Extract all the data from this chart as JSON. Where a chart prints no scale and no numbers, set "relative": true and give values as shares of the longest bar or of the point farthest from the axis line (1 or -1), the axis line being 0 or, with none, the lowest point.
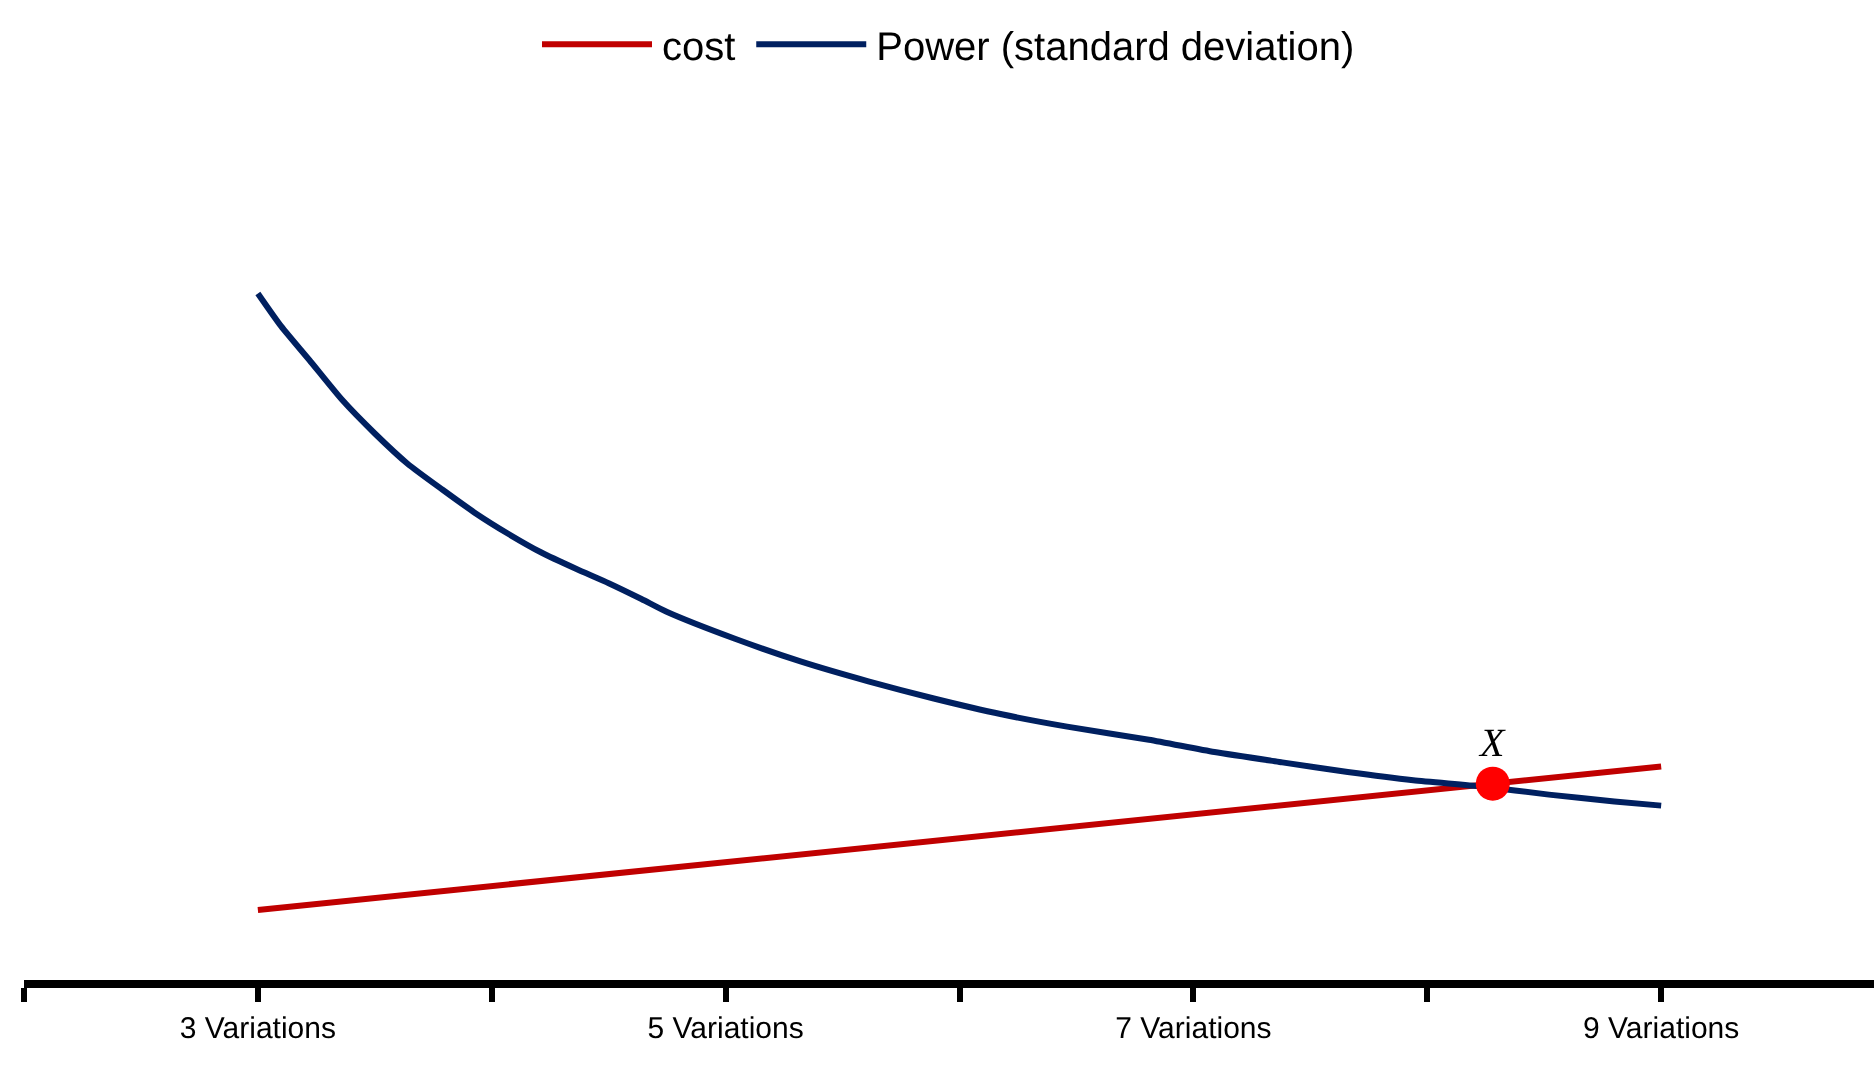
{
  "chart_data": {
    "type": "line",
    "relative": true,
    "legend": "top",
    "xlim": [
      2,
      9.91
    ],
    "xticks": [
      {
        "value": 2,
        "label": null
      },
      {
        "value": 3,
        "label": "3 Variations"
      },
      {
        "value": 4,
        "label": null
      },
      {
        "value": 5,
        "label": "5 Variations"
      },
      {
        "value": 6,
        "label": null
      },
      {
        "value": 7,
        "label": "7 Variations"
      },
      {
        "value": 8,
        "label": null
      },
      {
        "value": 9,
        "label": "9 Variations"
      }
    ],
    "series": [
      {
        "name": "cost",
        "color": "#c00000",
        "x": [
          3,
          9
        ],
        "values": [
          0.102,
          0.311
        ]
      },
      {
        "name": "Power (standard deviation)",
        "color": "#002060",
        "x": [
          3,
          3.1,
          3.22,
          3.36,
          3.5,
          3.64,
          3.79,
          3.93,
          4.07,
          4.21,
          4.36,
          4.5,
          4.64,
          4.75,
          5.04,
          5.32,
          5.61,
          5.89,
          6.18,
          6.46,
          6.81,
          7.09,
          7.38,
          7.66,
          7.94,
          8.23,
          8.52,
          8.8,
          9
        ],
        "values": [
          1,
          0.952,
          0.903,
          0.845,
          0.796,
          0.752,
          0.714,
          0.68,
          0.65,
          0.623,
          0.599,
          0.578,
          0.555,
          0.536,
          0.497,
          0.464,
          0.435,
          0.41,
          0.387,
          0.369,
          0.35,
          0.332,
          0.317,
          0.303,
          0.291,
          0.282,
          0.27,
          0.26,
          0.254
        ]
      },
      {
        "type": "scatter",
        "color": "#ff0000",
        "x": [
          8.28
        ],
        "values": [
          0.286
        ]
      }
    ],
    "annotations": [
      {
        "text": "X",
        "x": 8.28,
        "y": 0.286
      }
    ]
  }
}
